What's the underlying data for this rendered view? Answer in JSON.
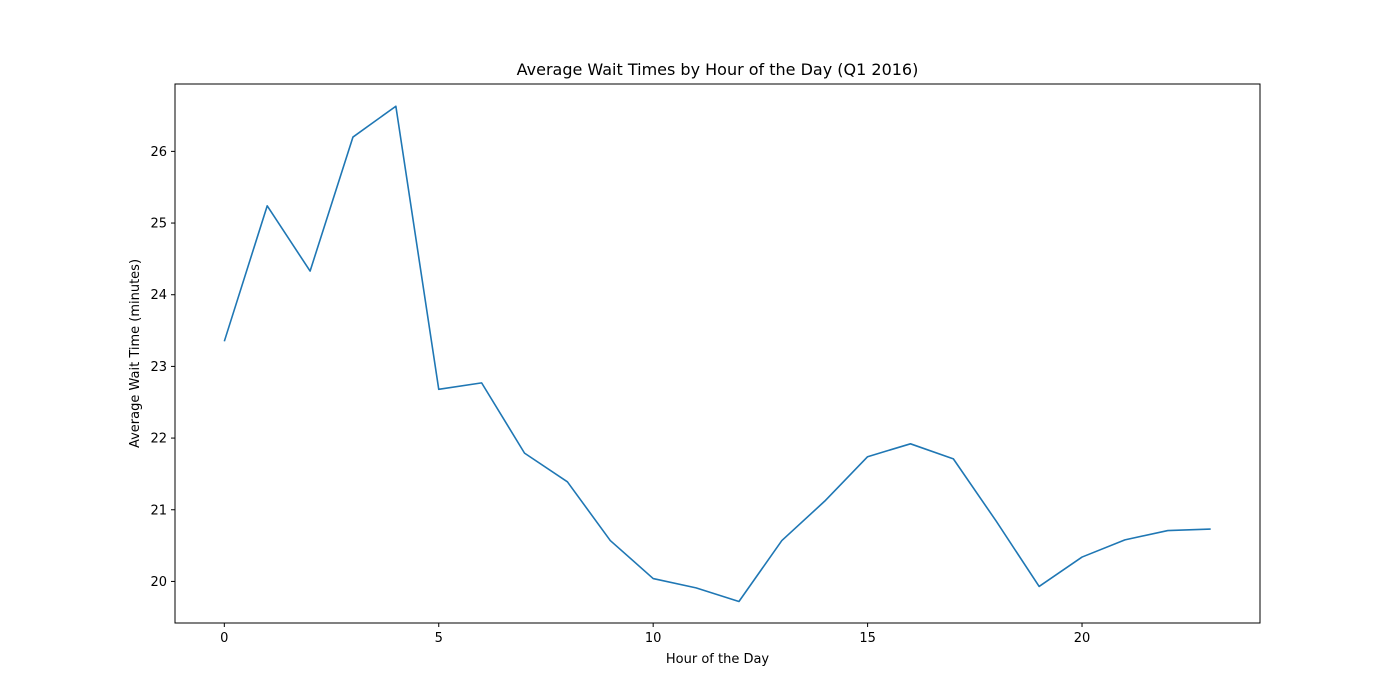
{
  "chart_data": {
    "type": "line",
    "title": "Average Wait Times by Hour of the Day (Q1 2016)",
    "xlabel": "Hour of the Day",
    "ylabel": "Average Wait Time (minutes)",
    "xlim": [
      -1.15,
      24.15
    ],
    "ylim": [
      19.42,
      26.94
    ],
    "xticks": [
      0,
      5,
      10,
      15,
      20
    ],
    "yticks": [
      20,
      21,
      22,
      23,
      24,
      25,
      26
    ],
    "grid": false,
    "line_color": "#1f77b4",
    "series": [
      {
        "x": [
          0,
          1,
          2,
          3,
          4,
          5,
          6,
          7,
          8,
          9,
          10,
          11,
          12,
          13,
          14,
          15,
          16,
          17,
          18,
          19,
          20,
          21,
          22,
          23
        ],
        "values": [
          23.35,
          25.24,
          24.33,
          26.2,
          26.63,
          22.68,
          22.77,
          21.79,
          21.39,
          20.57,
          20.04,
          19.91,
          19.72,
          20.57,
          21.12,
          21.74,
          21.92,
          21.71,
          20.84,
          19.93,
          20.34,
          20.58,
          20.71,
          20.73
        ]
      }
    ]
  }
}
